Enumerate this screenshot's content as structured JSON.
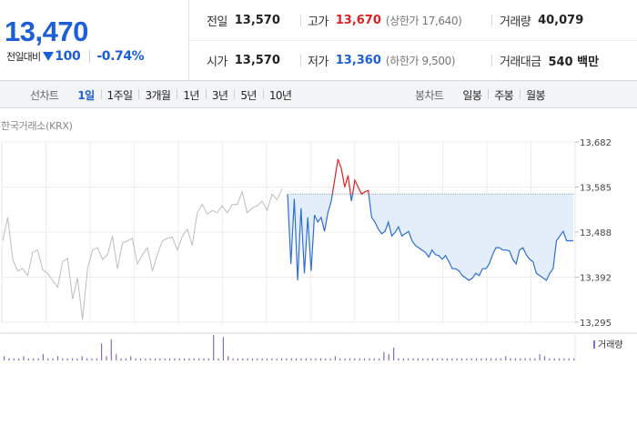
{
  "quote": {
    "price": "13,470",
    "change_label": "전일대비",
    "change_dir": "down-triangle-icon",
    "change_amount": "100",
    "change_percent": "-0.74%"
  },
  "stats": {
    "prev_close": {
      "label": "전일",
      "value": "13,570"
    },
    "high": {
      "label": "고가",
      "value": "13,670",
      "limit": "(상한가 17,640)"
    },
    "volume": {
      "label": "거래량",
      "value": "40,079"
    },
    "open": {
      "label": "시가",
      "value": "13,570"
    },
    "low": {
      "label": "저가",
      "value": "13,360",
      "limit": "(하한가 9,500)"
    },
    "turnover": {
      "label": "거래대금",
      "value": "540 백만"
    }
  },
  "toolbar": {
    "line_title": "선차트",
    "line_periods": [
      "1일",
      "1주일",
      "3개월",
      "1년",
      "3년",
      "5년",
      "10년"
    ],
    "active_period": "1일",
    "candle_title": "봉차트",
    "candle_periods": [
      "일봉",
      "주봉",
      "월봉"
    ]
  },
  "colors": {
    "up": "#e02020",
    "down": "#1c5fd6",
    "line": "#2f6fd1",
    "prev_line": "#bdbdbd",
    "fill": "#e4edfa",
    "volume": "#8a6cc7"
  },
  "chart_data": {
    "type": "line",
    "source": "한국거래소(KRX)",
    "y_ticks": [
      "13,682",
      "13,585",
      "13,488",
      "13,392",
      "13,295"
    ],
    "ylim": [
      13295,
      13682
    ],
    "reference_price": 13570,
    "grid": true,
    "volume_legend": "거래량",
    "series": [
      {
        "values": [
          13470,
          13520,
          13430,
          13405,
          13410,
          13395,
          13445,
          13450,
          13408,
          13400,
          13385,
          13370,
          13425,
          13432,
          13345,
          13390,
          13300,
          13410,
          13450,
          13455,
          13430,
          13440,
          13480,
          13410,
          13465,
          13470,
          13475,
          13420,
          13440,
          13455,
          13405,
          13440,
          13470,
          13475,
          13478,
          13450,
          13480,
          13495,
          13460,
          13530,
          13548,
          13527,
          13535,
          13530,
          13545,
          13530,
          13548,
          13548,
          13575,
          13530,
          13540,
          13545,
          13555,
          13535,
          13570,
          13558,
          13582
        ]
      },
      {
        "values": [
          13570,
          13420,
          13560,
          13385,
          13540,
          13400,
          13520,
          13405,
          13525,
          13510,
          13520,
          13490,
          13530,
          13555,
          13600,
          13645,
          13625,
          13585,
          13610,
          13555,
          13600,
          13585,
          13570,
          13575,
          13578,
          13520,
          13510,
          13495,
          13485,
          13490,
          13510,
          13480,
          13488,
          13500,
          13480,
          13485,
          13490,
          13470,
          13460,
          13455,
          13450,
          13445,
          13435,
          13450,
          13440,
          13438,
          13430,
          13438,
          13425,
          13410,
          13410,
          13405,
          13395,
          13390,
          13385,
          13390,
          13400,
          13395,
          13410,
          13410,
          13420,
          13440,
          13455,
          13455,
          13450,
          13450,
          13448,
          13430,
          13420,
          13450,
          13455,
          13440,
          13430,
          13425,
          13400,
          13395,
          13390,
          13385,
          13400,
          13410,
          13470,
          13480,
          13490,
          13470,
          13470,
          13470
        ]
      }
    ],
    "volume": [
      2,
      1,
      1,
      1,
      2,
      1,
      1,
      1,
      3,
      1,
      1,
      2,
      1,
      1,
      1,
      1,
      2,
      1,
      1,
      1,
      8,
      2,
      10,
      3,
      1,
      1,
      2,
      1,
      1,
      1,
      1,
      1,
      1,
      1,
      1,
      1,
      1,
      1,
      1,
      1,
      1,
      1,
      1,
      12,
      1,
      11,
      2,
      1,
      1,
      1,
      1,
      1,
      1,
      1,
      1,
      1,
      1,
      1,
      1,
      1,
      1,
      1,
      1,
      1,
      1,
      1,
      1,
      1,
      2,
      1,
      1,
      1,
      1,
      1,
      1,
      1,
      1,
      1,
      4,
      3,
      6,
      1,
      1,
      1,
      1,
      1,
      1,
      1,
      1,
      1,
      1,
      1,
      1,
      1,
      1,
      1,
      1,
      1,
      1,
      1,
      1,
      1,
      1,
      2,
      1,
      1,
      1,
      1,
      1,
      1,
      3,
      2,
      1,
      1,
      1,
      1,
      1,
      1
    ]
  }
}
